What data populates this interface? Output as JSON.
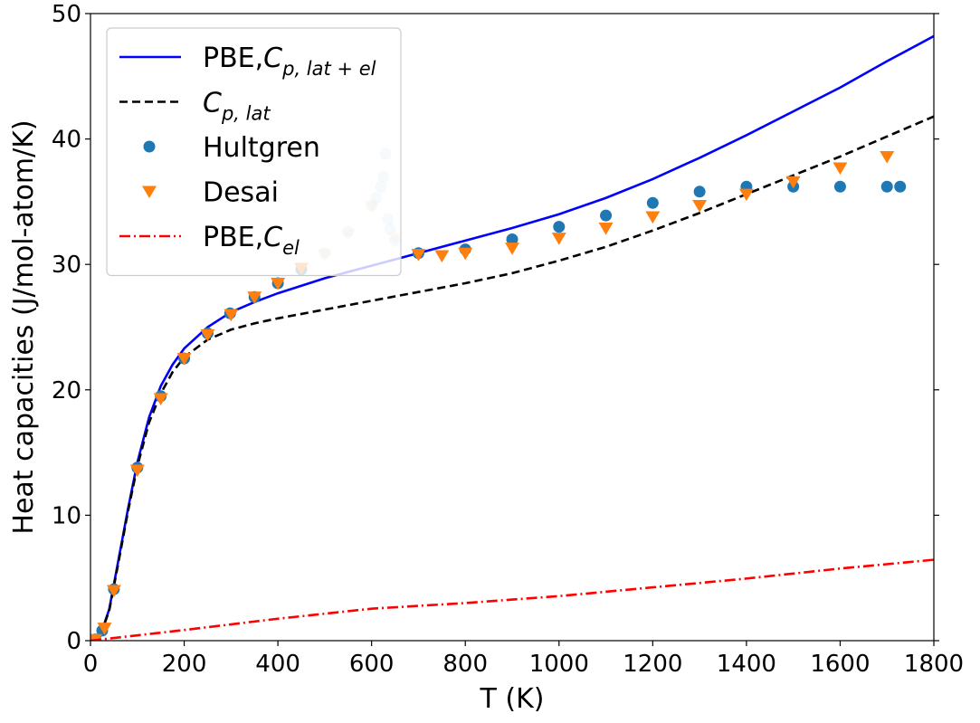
{
  "chart_data": {
    "type": "line",
    "xlabel": "T (K)",
    "ylabel": "Heat capacities (J/mol-atom/K)",
    "xlim": [
      0,
      1800
    ],
    "ylim": [
      0,
      50
    ],
    "xticks": [
      0,
      200,
      400,
      600,
      800,
      1000,
      1200,
      1400,
      1600,
      1800
    ],
    "yticks": [
      0,
      10,
      20,
      30,
      40,
      50
    ],
    "xtick_labels": [
      "0",
      "200",
      "400",
      "600",
      "800",
      "1000",
      "1200",
      "1400",
      "1600",
      "1800"
    ],
    "ytick_labels": [
      "0",
      "10",
      "20",
      "30",
      "40",
      "50"
    ],
    "legend_position": "top-left",
    "series": [
      {
        "name": "PBE,C_{p,lat+el}",
        "kind": "line",
        "style": "solid",
        "color": "#0000ff",
        "x": [
          0,
          20,
          40,
          60,
          80,
          100,
          125,
          150,
          175,
          200,
          250,
          300,
          350,
          400,
          500,
          600,
          700,
          800,
          900,
          1000,
          1100,
          1200,
          1300,
          1400,
          1500,
          1600,
          1700,
          1800
        ],
        "y": [
          0,
          0.3,
          2.5,
          6.5,
          10.5,
          14.2,
          17.8,
          20.3,
          22.0,
          23.3,
          25.0,
          26.2,
          27.0,
          27.7,
          28.9,
          29.9,
          30.9,
          31.9,
          32.9,
          34.0,
          35.3,
          36.8,
          38.5,
          40.3,
          42.2,
          44.1,
          46.2,
          48.2
        ]
      },
      {
        "name": "C_{p,lat}",
        "kind": "line",
        "style": "dashed",
        "color": "#000000",
        "x": [
          0,
          20,
          40,
          60,
          80,
          100,
          125,
          150,
          175,
          200,
          250,
          300,
          350,
          400,
          500,
          600,
          700,
          800,
          900,
          1000,
          1100,
          1200,
          1300,
          1400,
          1500,
          1600,
          1700,
          1800
        ],
        "y": [
          0,
          0.3,
          2.4,
          6.3,
          10.3,
          13.9,
          17.4,
          19.7,
          21.4,
          22.6,
          24.0,
          24.8,
          25.3,
          25.7,
          26.4,
          27.1,
          27.8,
          28.5,
          29.3,
          30.3,
          31.4,
          32.7,
          34.1,
          35.6,
          37.1,
          38.6,
          40.2,
          41.8
        ]
      },
      {
        "name": "Hultgren",
        "kind": "scatter",
        "marker": "circle",
        "color": "#1f77b4",
        "x": [
          10,
          25,
          50,
          100,
          150,
          200,
          250,
          298,
          350,
          400,
          450,
          500,
          550,
          600,
          610,
          620,
          625,
          630,
          635,
          640,
          650,
          700,
          800,
          900,
          1000,
          1100,
          1200,
          1300,
          1400,
          1500,
          1600,
          1700,
          1728
        ],
        "y": [
          0.1,
          0.8,
          4.1,
          13.8,
          19.5,
          22.5,
          24.5,
          26.1,
          27.4,
          28.5,
          29.6,
          30.9,
          32.6,
          34.7,
          35.3,
          36.2,
          37.0,
          38.8,
          33.6,
          32.8,
          31.9,
          30.9,
          31.2,
          32.0,
          33.0,
          33.9,
          34.9,
          35.8,
          36.2,
          36.2,
          36.2,
          36.2,
          36.2
        ],
        "faded_x_range": [
          500,
          650
        ]
      },
      {
        "name": "Desai",
        "kind": "scatter",
        "marker": "triangle-down",
        "color": "#ff7f0e",
        "x": [
          10,
          30,
          50,
          100,
          150,
          200,
          250,
          300,
          350,
          400,
          450,
          500,
          550,
          600,
          650,
          700,
          750,
          800,
          900,
          1000,
          1100,
          1200,
          1300,
          1400,
          1500,
          1600,
          1700
        ],
        "y": [
          0.1,
          1.0,
          4.0,
          13.6,
          19.3,
          22.5,
          24.4,
          26.0,
          27.4,
          28.5,
          29.7,
          30.8,
          32.4,
          34.6,
          32.1,
          30.8,
          30.7,
          30.9,
          31.3,
          32.1,
          32.9,
          33.8,
          34.7,
          35.6,
          36.6,
          37.7,
          38.6
        ],
        "faded_x_range": [
          500,
          650
        ]
      },
      {
        "name": "PBE,C_{el}",
        "kind": "line",
        "style": "dashdot",
        "color": "#ff0000",
        "x": [
          0,
          200,
          400,
          600,
          800,
          1000,
          1200,
          1400,
          1600,
          1800
        ],
        "y": [
          0,
          0.85,
          1.75,
          2.55,
          3.0,
          3.55,
          4.25,
          4.95,
          5.75,
          6.45
        ]
      }
    ]
  }
}
